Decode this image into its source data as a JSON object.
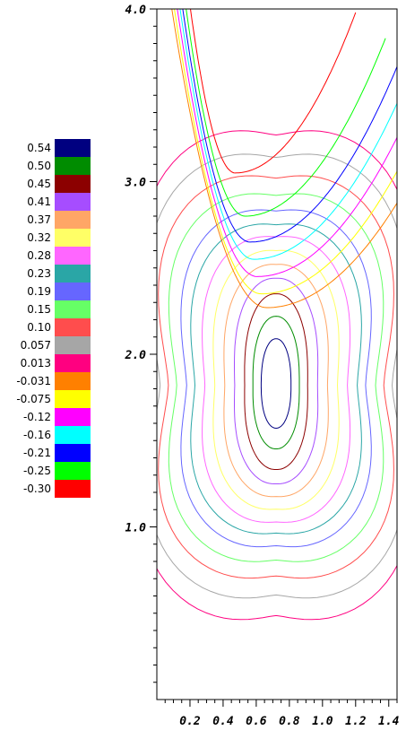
{
  "chart_data": {
    "type": "contour",
    "title": "",
    "xlabel": "",
    "ylabel": "",
    "xlim": [
      0.0,
      1.45
    ],
    "ylim": [
      0.0,
      4.0
    ],
    "x_ticks": [
      "0.2",
      "0.4",
      "0.6",
      "0.8",
      "1.0",
      "1.2",
      "1.4"
    ],
    "x_tick_values": [
      0.2,
      0.4,
      0.6,
      0.8,
      1.0,
      1.2,
      1.4
    ],
    "y_ticks": [
      "1.0",
      "2.0",
      "3.0",
      "4.0"
    ],
    "y_tick_values": [
      1.0,
      2.0,
      3.0,
      4.0
    ],
    "legend_position": "left",
    "legend": [
      {
        "label": "0.54",
        "color": "#000080"
      },
      {
        "label": "0.50",
        "color": "#008C00"
      },
      {
        "label": "0.45",
        "color": "#8C0000"
      },
      {
        "label": "0.41",
        "color": "#A64DFF"
      },
      {
        "label": "0.37",
        "color": "#FFA666"
      },
      {
        "label": "0.32",
        "color": "#FFFF66"
      },
      {
        "label": "0.28",
        "color": "#FF66FF"
      },
      {
        "label": "0.23",
        "color": "#2AA6A6"
      },
      {
        "label": "0.19",
        "color": "#6666FF"
      },
      {
        "label": "0.15",
        "color": "#66FF66"
      },
      {
        "label": "0.10",
        "color": "#FF4D4D"
      },
      {
        "label": "0.057",
        "color": "#A6A6A6"
      },
      {
        "label": "0.013",
        "color": "#FF0080"
      },
      {
        "label": "-0.031",
        "color": "#FF8000"
      },
      {
        "label": "-0.075",
        "color": "#FFFF00"
      },
      {
        "label": "-0.12",
        "color": "#FF00FF"
      },
      {
        "label": "-0.16",
        "color": "#00FFFF"
      },
      {
        "label": "-0.21",
        "color": "#0000FF"
      },
      {
        "label": "-0.25",
        "color": "#00FF00"
      },
      {
        "label": "-0.30",
        "color": "#FF0000"
      }
    ],
    "lower_cell": {
      "center": [
        0.72,
        1.82
      ],
      "contours": [
        {
          "level": "0.54",
          "rx": 0.09,
          "ry": 0.27
        },
        {
          "level": "0.50",
          "rx": 0.14,
          "ry": 0.4
        },
        {
          "level": "0.45",
          "rx": 0.19,
          "ry": 0.53
        },
        {
          "level": "0.41",
          "rx": 0.25,
          "ry": 0.62
        },
        {
          "level": "0.37",
          "rx": 0.31,
          "ry": 0.7
        },
        {
          "level": "0.32",
          "rx": 0.37,
          "ry": 0.78
        },
        {
          "level": "0.28",
          "rx": 0.43,
          "ry": 0.86
        },
        {
          "level": "0.23",
          "rx": 0.49,
          "ry": 0.93
        },
        {
          "level": "0.19",
          "rx": 0.54,
          "ry": 1.01
        },
        {
          "level": "0.15",
          "rx": 0.6,
          "ry": 1.1
        },
        {
          "level": "0.10",
          "rx": 0.65,
          "ry": 1.2
        },
        {
          "level": "0.057",
          "rx": 0.7,
          "ry": 1.32
        },
        {
          "level": "0.013",
          "rx": 0.74,
          "ry": 1.45
        }
      ]
    },
    "upper_cell": {
      "contours": [
        {
          "level": "-0.30",
          "x_top": 1.2,
          "y_min": 3.05,
          "x_min": 0.55
        },
        {
          "level": "-0.25",
          "x_top": 1.38,
          "y_min": 2.8,
          "x_min": 0.52
        },
        {
          "level": "-0.21",
          "x_top": 1.48,
          "y_min": 2.65,
          "x_min": 0.5
        },
        {
          "level": "-0.16",
          "x_top": 1.55,
          "y_min": 2.55,
          "x_min": 0.48
        },
        {
          "level": "-0.12",
          "x_top": 1.62,
          "y_min": 2.45,
          "x_min": 0.46
        },
        {
          "level": "-0.075",
          "x_top": 1.7,
          "y_min": 2.35,
          "x_min": 0.44
        },
        {
          "level": "-0.031",
          "x_top": 1.8,
          "y_min": 2.27,
          "x_min": 0.42
        }
      ]
    }
  }
}
